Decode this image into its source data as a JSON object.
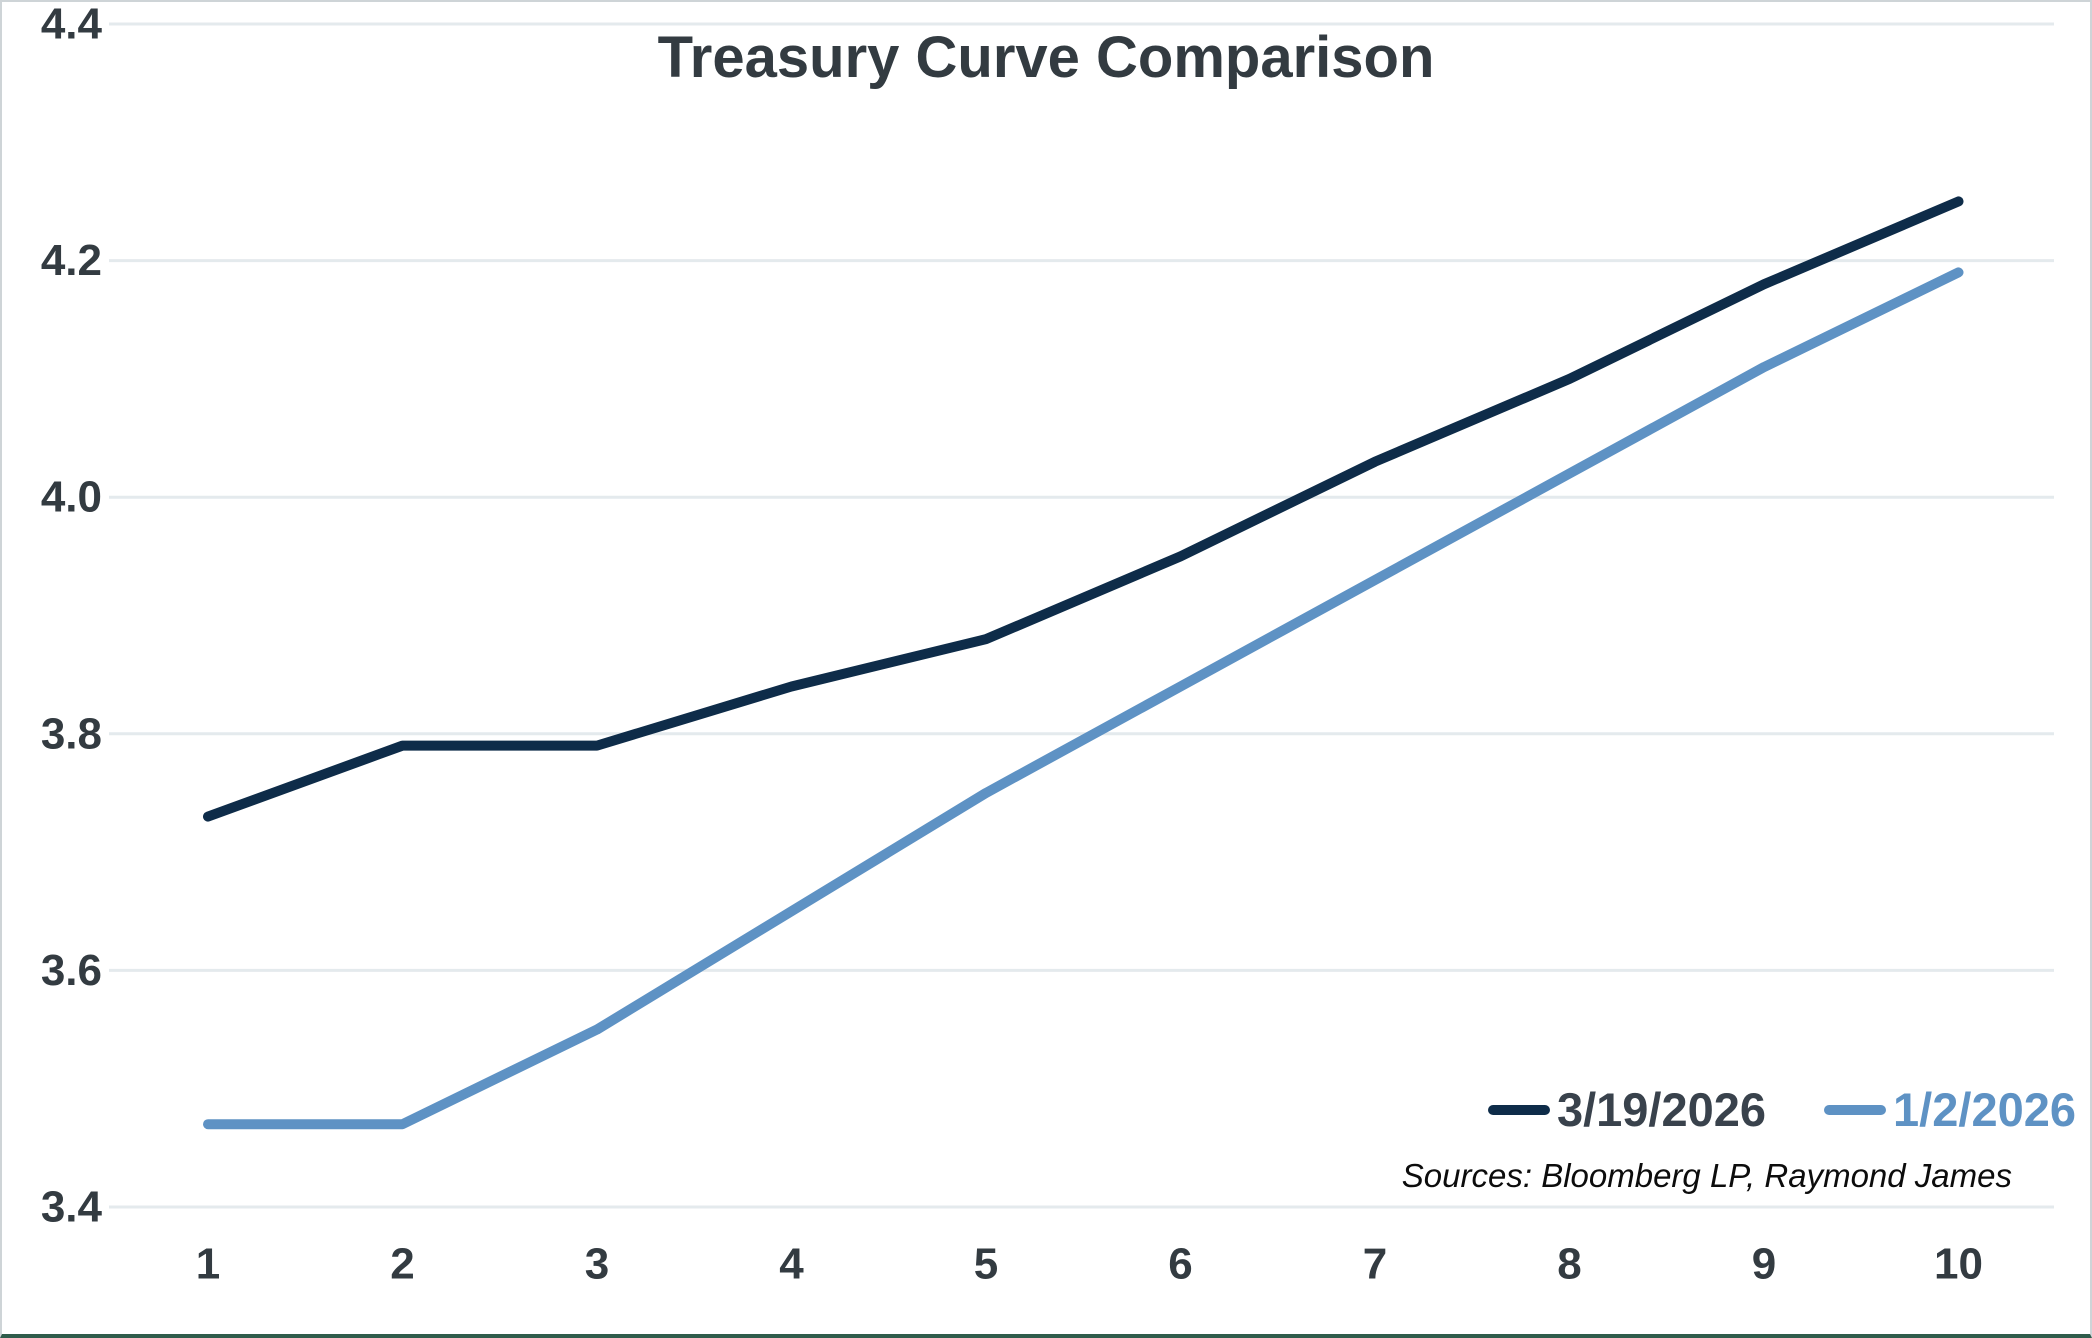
{
  "title": "Treasury Curve Comparison",
  "sources_note": "Sources: Bloomberg LP, Raymond James",
  "colors": {
    "series1_line": "#0e2c49",
    "series2_line": "#5e92c4",
    "title_text": "#333b41",
    "tick_text": "#333b41",
    "legend1_text": "#39424c",
    "legend2_text": "#5e92c4",
    "gridline": "#e4eaed",
    "background": "#ffffff",
    "frame_border": "#ced4d7",
    "bottom_border": "#2f5c4b"
  },
  "legend": {
    "items": [
      {
        "label": "3/19/2026",
        "swatch_color": "#0e2c49",
        "text_color": "#39424c"
      },
      {
        "label": "1/2/2026",
        "swatch_color": "#5e92c4",
        "text_color": "#5e92c4"
      }
    ]
  },
  "chart_data": {
    "type": "line",
    "title": "Treasury Curve Comparison",
    "x": [
      1,
      2,
      3,
      4,
      5,
      6,
      7,
      8,
      9,
      10
    ],
    "series": [
      {
        "name": "3/19/2026",
        "color": "#0e2c49",
        "values": [
          3.73,
          3.79,
          3.79,
          3.84,
          3.88,
          3.95,
          4.03,
          4.1,
          4.18,
          4.25
        ]
      },
      {
        "name": "1/2/2026",
        "color": "#5e92c4",
        "values": [
          3.47,
          3.47,
          3.55,
          3.65,
          3.75,
          3.84,
          3.93,
          4.02,
          4.11,
          4.19
        ]
      }
    ],
    "ylim": [
      3.4,
      4.4
    ],
    "yticks": [
      3.4,
      3.6,
      3.8,
      4.0,
      4.2,
      4.4
    ],
    "xticks": [
      1,
      2,
      3,
      4,
      5,
      6,
      7,
      8,
      9,
      10
    ],
    "grid": "horizontal",
    "legend_position": "inside-bottom-right",
    "annotations": [
      "Sources: Bloomberg LP, Raymond James"
    ]
  }
}
